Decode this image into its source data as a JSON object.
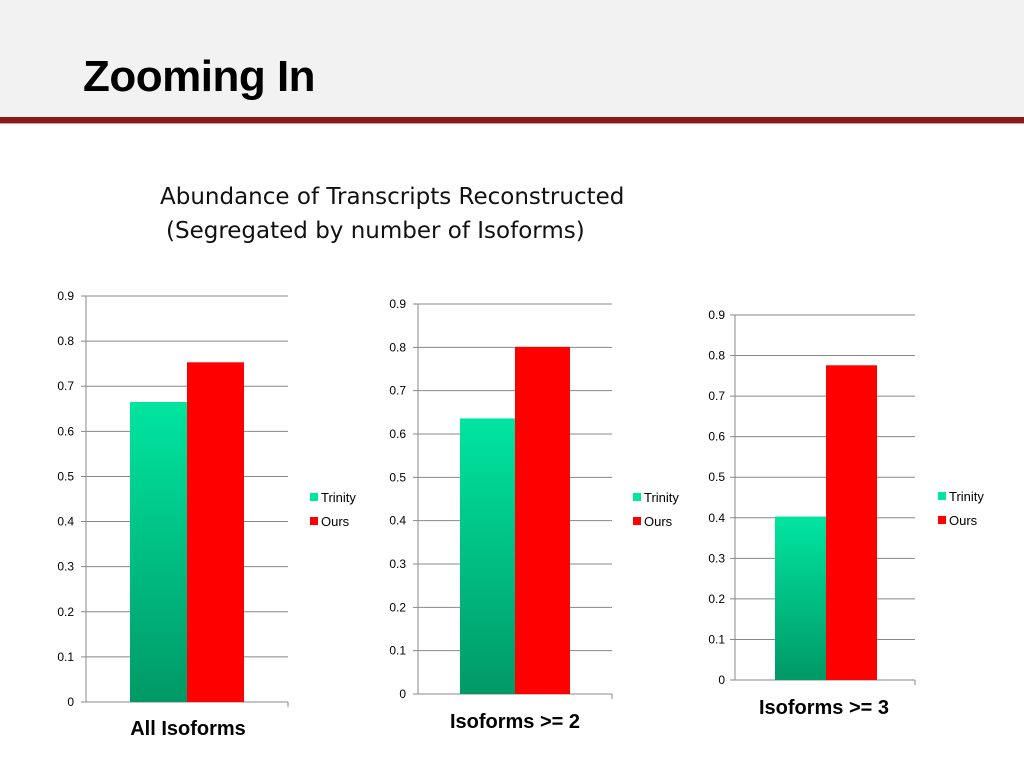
{
  "slide": {
    "title": "Zooming In",
    "subtitle_line1": "Abundance of Transcripts Reconstructed",
    "subtitle_line2": "(Segregated by number of Isoforms)"
  },
  "colors": {
    "trinity_top": "#00e5a0",
    "trinity_bottom": "#009966",
    "ours": "#ff0000",
    "rule": "#8b1a1a",
    "grid": "#888888"
  },
  "chart_data": [
    {
      "type": "bar",
      "xlabel": "All Isoforms",
      "ylim": [
        0,
        0.9
      ],
      "yticks": [
        "0",
        "0.1",
        "0.2",
        "0.3",
        "0.4",
        "0.5",
        "0.6",
        "0.7",
        "0.8",
        "0.9"
      ],
      "grid": true,
      "legend_position": "right",
      "series": [
        {
          "name": "Trinity",
          "values": [
            0.665
          ]
        },
        {
          "name": "Ours",
          "values": [
            0.753
          ]
        }
      ]
    },
    {
      "type": "bar",
      "xlabel": "Isoforms >= 2",
      "ylim": [
        0,
        0.9
      ],
      "yticks": [
        "0",
        "0.1",
        "0.2",
        "0.3",
        "0.4",
        "0.5",
        "0.6",
        "0.7",
        "0.8",
        "0.9"
      ],
      "grid": true,
      "legend_position": "right",
      "series": [
        {
          "name": "Trinity",
          "values": [
            0.636
          ]
        },
        {
          "name": "Ours",
          "values": [
            0.801
          ]
        }
      ]
    },
    {
      "type": "bar",
      "xlabel": "Isoforms >= 3",
      "ylim": [
        0,
        0.9
      ],
      "yticks": [
        "0",
        "0.1",
        "0.2",
        "0.3",
        "0.4",
        "0.5",
        "0.6",
        "0.7",
        "0.8",
        "0.9"
      ],
      "grid": true,
      "legend_position": "right",
      "series": [
        {
          "name": "Trinity",
          "values": [
            0.403
          ]
        },
        {
          "name": "Ours",
          "values": [
            0.776
          ]
        }
      ]
    }
  ]
}
